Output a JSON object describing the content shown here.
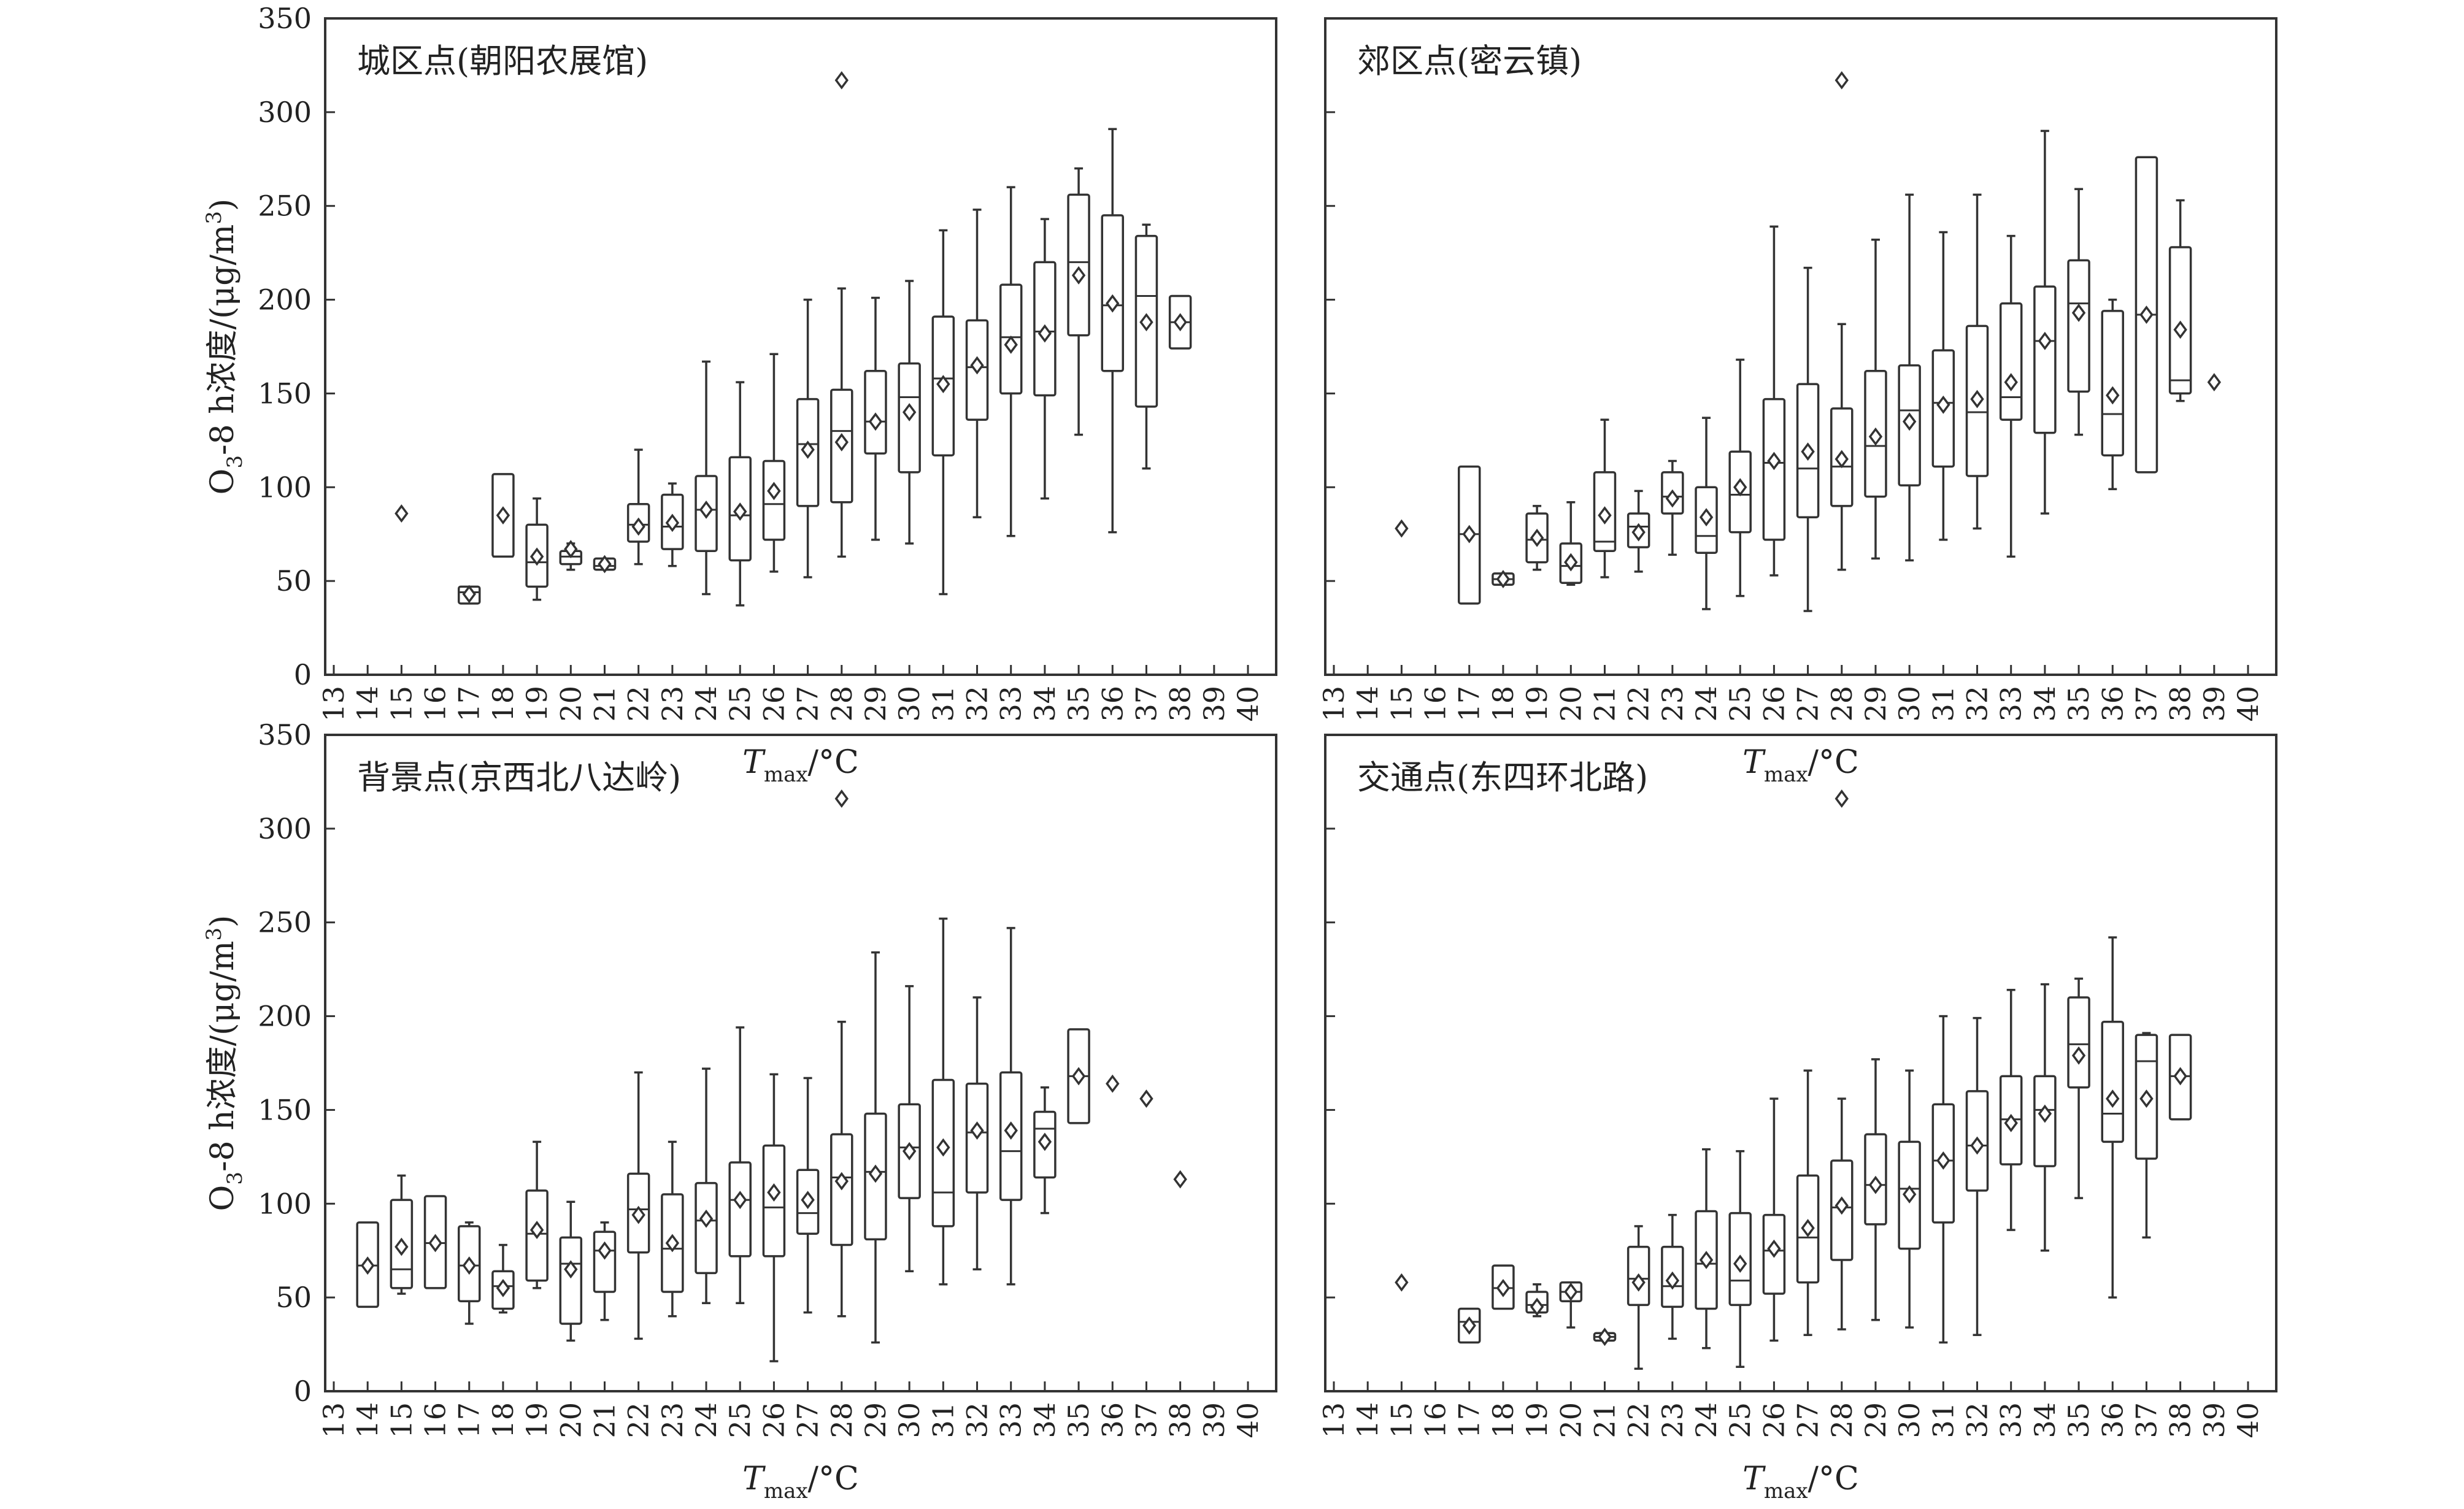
{
  "chart_data": [
    {
      "type": "box",
      "title": "城区点(朝阳农展馆)",
      "x_ticks": [
        13,
        14,
        15,
        16,
        17,
        18,
        19,
        20,
        21,
        22,
        23,
        24,
        25,
        26,
        27,
        28,
        29,
        30,
        31,
        32,
        33,
        34,
        35,
        36,
        37,
        38,
        39,
        40
      ],
      "y_ticks": [
        0,
        50,
        100,
        150,
        200,
        250,
        300,
        350
      ],
      "ylim": [
        0,
        350
      ],
      "xlabel": {
        "main": "T",
        "sub": "max",
        "unit": "/°C"
      },
      "ylabel": {
        "pre": "O",
        "sub": "3",
        "post": "-8 h浓度/(μg/m",
        "sup": "3",
        "end": ")"
      },
      "boxes": [
        {
          "x": 15,
          "mean": 86
        },
        {
          "x": 17,
          "q1": 38,
          "med": 44,
          "q3": 47,
          "mean": 43
        },
        {
          "x": 18,
          "q1": 63,
          "med": 63,
          "q3": 107,
          "mean": 85
        },
        {
          "x": 19,
          "lo": 40,
          "q1": 47,
          "med": 60,
          "q3": 80,
          "hi": 94,
          "mean": 63
        },
        {
          "x": 20,
          "lo": 56,
          "q1": 59,
          "med": 63,
          "q3": 66,
          "hi": 70,
          "mean": 67
        },
        {
          "x": 21,
          "q1": 56,
          "med": 58,
          "q3": 62,
          "mean": 59
        },
        {
          "x": 22,
          "lo": 59,
          "q1": 71,
          "med": 80,
          "q3": 91,
          "hi": 120,
          "mean": 79
        },
        {
          "x": 23,
          "lo": 58,
          "q1": 67,
          "med": 79,
          "q3": 96,
          "hi": 102,
          "mean": 81
        },
        {
          "x": 24,
          "lo": 43,
          "q1": 66,
          "med": 88,
          "q3": 106,
          "hi": 167,
          "mean": 88
        },
        {
          "x": 25,
          "lo": 37,
          "q1": 61,
          "med": 85,
          "q3": 116,
          "hi": 156,
          "mean": 87
        },
        {
          "x": 26,
          "lo": 55,
          "q1": 72,
          "med": 91,
          "q3": 114,
          "hi": 171,
          "mean": 98
        },
        {
          "x": 27,
          "lo": 52,
          "q1": 90,
          "med": 123,
          "q3": 147,
          "hi": 200,
          "mean": 120
        },
        {
          "x": 28,
          "lo": 63,
          "q1": 92,
          "med": 130,
          "q3": 152,
          "hi": 206,
          "mean": 124,
          "outliers": [
            317
          ]
        },
        {
          "x": 29,
          "lo": 72,
          "q1": 118,
          "med": 135,
          "q3": 162,
          "hi": 201,
          "mean": 135
        },
        {
          "x": 30,
          "lo": 70,
          "q1": 108,
          "med": 148,
          "q3": 166,
          "hi": 210,
          "mean": 140
        },
        {
          "x": 31,
          "lo": 43,
          "q1": 117,
          "med": 158,
          "q3": 191,
          "hi": 237,
          "mean": 155
        },
        {
          "x": 32,
          "lo": 84,
          "q1": 136,
          "med": 164,
          "q3": 189,
          "hi": 248,
          "mean": 165
        },
        {
          "x": 33,
          "lo": 74,
          "q1": 150,
          "med": 180,
          "q3": 208,
          "hi": 260,
          "mean": 176
        },
        {
          "x": 34,
          "lo": 94,
          "q1": 149,
          "med": 183,
          "q3": 220,
          "hi": 243,
          "mean": 182
        },
        {
          "x": 35,
          "lo": 128,
          "q1": 181,
          "med": 220,
          "q3": 256,
          "hi": 270,
          "mean": 213
        },
        {
          "x": 36,
          "lo": 76,
          "q1": 162,
          "med": 197,
          "q3": 245,
          "hi": 291,
          "mean": 198
        },
        {
          "x": 37,
          "lo": 110,
          "q1": 143,
          "med": 202,
          "q3": 234,
          "hi": 240,
          "mean": 188
        },
        {
          "x": 38,
          "q1": 174,
          "med": 188,
          "q3": 202,
          "mean": 188
        }
      ]
    },
    {
      "type": "box",
      "title": "郊区点(密云镇)",
      "x_ticks": [
        13,
        14,
        15,
        16,
        17,
        18,
        19,
        20,
        21,
        22,
        23,
        24,
        25,
        26,
        27,
        28,
        29,
        30,
        31,
        32,
        33,
        34,
        35,
        36,
        37,
        38,
        39,
        40
      ],
      "y_ticks": [
        0,
        50,
        100,
        150,
        200,
        250,
        300,
        350
      ],
      "ylim": [
        0,
        350
      ],
      "xlabel": {
        "main": "T",
        "sub": "max",
        "unit": "/°C"
      },
      "ylabel": {
        "pre": "",
        "sub": "",
        "post": "",
        "sup": "",
        "end": ""
      },
      "boxes": [
        {
          "x": 15,
          "mean": 78
        },
        {
          "x": 17,
          "q1": 38,
          "med": 75,
          "q3": 111,
          "mean": 75
        },
        {
          "x": 18,
          "q1": 48,
          "med": 51,
          "q3": 54,
          "mean": 51
        },
        {
          "x": 19,
          "lo": 56,
          "q1": 60,
          "med": 72,
          "q3": 86,
          "hi": 90,
          "mean": 73
        },
        {
          "x": 20,
          "lo": 48,
          "q1": 49,
          "med": 58,
          "q3": 70,
          "hi": 92,
          "mean": 60
        },
        {
          "x": 21,
          "lo": 52,
          "q1": 66,
          "med": 71,
          "q3": 108,
          "hi": 136,
          "mean": 85
        },
        {
          "x": 22,
          "lo": 55,
          "q1": 68,
          "med": 79,
          "q3": 86,
          "hi": 98,
          "mean": 76
        },
        {
          "x": 23,
          "lo": 64,
          "q1": 86,
          "med": 95,
          "q3": 108,
          "hi": 114,
          "mean": 94
        },
        {
          "x": 24,
          "lo": 35,
          "q1": 65,
          "med": 74,
          "q3": 100,
          "hi": 137,
          "mean": 84
        },
        {
          "x": 25,
          "lo": 42,
          "q1": 76,
          "med": 96,
          "q3": 119,
          "hi": 168,
          "mean": 100
        },
        {
          "x": 26,
          "lo": 53,
          "q1": 72,
          "med": 113,
          "q3": 147,
          "hi": 239,
          "mean": 114
        },
        {
          "x": 27,
          "lo": 34,
          "q1": 84,
          "med": 110,
          "q3": 155,
          "hi": 217,
          "mean": 119
        },
        {
          "x": 28,
          "lo": 56,
          "q1": 90,
          "med": 111,
          "q3": 142,
          "hi": 187,
          "mean": 115,
          "outliers": [
            317
          ]
        },
        {
          "x": 29,
          "lo": 62,
          "q1": 95,
          "med": 122,
          "q3": 162,
          "hi": 232,
          "mean": 127
        },
        {
          "x": 30,
          "lo": 61,
          "q1": 101,
          "med": 141,
          "q3": 165,
          "hi": 256,
          "mean": 135
        },
        {
          "x": 31,
          "lo": 72,
          "q1": 111,
          "med": 145,
          "q3": 173,
          "hi": 236,
          "mean": 144
        },
        {
          "x": 32,
          "lo": 78,
          "q1": 106,
          "med": 140,
          "q3": 186,
          "hi": 256,
          "mean": 147
        },
        {
          "x": 33,
          "lo": 63,
          "q1": 136,
          "med": 148,
          "q3": 198,
          "hi": 234,
          "mean": 156
        },
        {
          "x": 34,
          "lo": 86,
          "q1": 129,
          "med": 178,
          "q3": 207,
          "hi": 290,
          "mean": 178
        },
        {
          "x": 35,
          "lo": 128,
          "q1": 151,
          "med": 198,
          "q3": 221,
          "hi": 259,
          "mean": 193
        },
        {
          "x": 36,
          "lo": 99,
          "q1": 117,
          "med": 139,
          "q3": 194,
          "hi": 200,
          "mean": 149
        },
        {
          "x": 37,
          "q1": 108,
          "med": 192,
          "q3": 276,
          "mean": 192
        },
        {
          "x": 38,
          "lo": 146,
          "q1": 150,
          "med": 157,
          "q3": 228,
          "hi": 253,
          "mean": 184
        },
        {
          "x": 39,
          "mean": 156
        }
      ]
    },
    {
      "type": "box",
      "title": "背景点(京西北八达岭)",
      "x_ticks": [
        13,
        14,
        15,
        16,
        17,
        18,
        19,
        20,
        21,
        22,
        23,
        24,
        25,
        26,
        27,
        28,
        29,
        30,
        31,
        32,
        33,
        34,
        35,
        36,
        37,
        38,
        39,
        40
      ],
      "y_ticks": [
        0,
        50,
        100,
        150,
        200,
        250,
        300,
        350
      ],
      "ylim": [
        0,
        350
      ],
      "xlabel": {
        "main": "T",
        "sub": "max",
        "unit": "/°C"
      },
      "ylabel": {
        "pre": "O",
        "sub": "3",
        "post": "-8 h浓度/(μg/m",
        "sup": "3",
        "end": ")"
      },
      "boxes": [
        {
          "x": 14,
          "q1": 45,
          "med": 67,
          "q3": 90,
          "mean": 67
        },
        {
          "x": 15,
          "lo": 52,
          "q1": 55,
          "med": 65,
          "q3": 102,
          "hi": 115,
          "mean": 77
        },
        {
          "x": 16,
          "q1": 55,
          "med": 79,
          "q3": 104,
          "mean": 79
        },
        {
          "x": 17,
          "lo": 36,
          "q1": 48,
          "med": 67,
          "q3": 88,
          "hi": 90,
          "mean": 67
        },
        {
          "x": 18,
          "lo": 42,
          "q1": 44,
          "med": 56,
          "q3": 64,
          "hi": 78,
          "mean": 55
        },
        {
          "x": 19,
          "lo": 55,
          "q1": 59,
          "med": 84,
          "q3": 107,
          "hi": 133,
          "mean": 86
        },
        {
          "x": 20,
          "lo": 27,
          "q1": 36,
          "med": 68,
          "q3": 82,
          "hi": 101,
          "mean": 65
        },
        {
          "x": 21,
          "lo": 38,
          "q1": 53,
          "med": 75,
          "q3": 85,
          "hi": 90,
          "mean": 75
        },
        {
          "x": 22,
          "lo": 28,
          "q1": 74,
          "med": 97,
          "q3": 116,
          "hi": 170,
          "mean": 94
        },
        {
          "x": 23,
          "lo": 40,
          "q1": 53,
          "med": 76,
          "q3": 105,
          "hi": 133,
          "mean": 79
        },
        {
          "x": 24,
          "lo": 47,
          "q1": 63,
          "med": 91,
          "q3": 111,
          "hi": 172,
          "mean": 92
        },
        {
          "x": 25,
          "lo": 47,
          "q1": 72,
          "med": 102,
          "q3": 122,
          "hi": 194,
          "mean": 102
        },
        {
          "x": 26,
          "lo": 16,
          "q1": 72,
          "med": 98,
          "q3": 131,
          "hi": 169,
          "mean": 106
        },
        {
          "x": 27,
          "lo": 42,
          "q1": 84,
          "med": 95,
          "q3": 118,
          "hi": 167,
          "mean": 102
        },
        {
          "x": 28,
          "lo": 40,
          "q1": 78,
          "med": 114,
          "q3": 137,
          "hi": 197,
          "mean": 112,
          "outliers": [
            316
          ]
        },
        {
          "x": 29,
          "lo": 26,
          "q1": 81,
          "med": 117,
          "q3": 148,
          "hi": 234,
          "mean": 116
        },
        {
          "x": 30,
          "lo": 64,
          "q1": 103,
          "med": 130,
          "q3": 153,
          "hi": 216,
          "mean": 128
        },
        {
          "x": 31,
          "lo": 57,
          "q1": 88,
          "med": 106,
          "q3": 166,
          "hi": 252,
          "mean": 130
        },
        {
          "x": 32,
          "lo": 65,
          "q1": 106,
          "med": 138,
          "q3": 164,
          "hi": 210,
          "mean": 139
        },
        {
          "x": 33,
          "lo": 57,
          "q1": 102,
          "med": 128,
          "q3": 170,
          "hi": 247,
          "mean": 139
        },
        {
          "x": 34,
          "lo": 95,
          "q1": 114,
          "med": 140,
          "q3": 149,
          "hi": 162,
          "mean": 133
        },
        {
          "x": 35,
          "q1": 143,
          "med": 168,
          "q3": 193,
          "mean": 168
        },
        {
          "x": 36,
          "mean": 164
        },
        {
          "x": 37,
          "mean": 156
        },
        {
          "x": 38,
          "mean": 113
        }
      ]
    },
    {
      "type": "box",
      "title": "交通点(东四环北路)",
      "x_ticks": [
        13,
        14,
        15,
        16,
        17,
        18,
        19,
        20,
        21,
        22,
        23,
        24,
        25,
        26,
        27,
        28,
        29,
        30,
        31,
        32,
        33,
        34,
        35,
        36,
        37,
        38,
        39,
        40
      ],
      "y_ticks": [
        0,
        50,
        100,
        150,
        200,
        250,
        300,
        350
      ],
      "ylim": [
        0,
        350
      ],
      "xlabel": {
        "main": "T",
        "sub": "max",
        "unit": "/°C"
      },
      "ylabel": {
        "pre": "",
        "sub": "",
        "post": "",
        "sup": "",
        "end": ""
      },
      "boxes": [
        {
          "x": 15,
          "mean": 58
        },
        {
          "x": 17,
          "q1": 26,
          "med": 37,
          "q3": 44,
          "mean": 35
        },
        {
          "x": 18,
          "q1": 44,
          "med": 55,
          "q3": 67,
          "mean": 55
        },
        {
          "x": 19,
          "lo": 40,
          "q1": 42,
          "med": 46,
          "q3": 53,
          "hi": 57,
          "mean": 45
        },
        {
          "x": 20,
          "lo": 34,
          "q1": 48,
          "med": 53,
          "q3": 58,
          "hi": 58,
          "mean": 53
        },
        {
          "x": 21,
          "q1": 27,
          "med": 29,
          "q3": 31,
          "mean": 29
        },
        {
          "x": 22,
          "lo": 12,
          "q1": 46,
          "med": 60,
          "q3": 77,
          "hi": 88,
          "mean": 58
        },
        {
          "x": 23,
          "lo": 28,
          "q1": 45,
          "med": 56,
          "q3": 77,
          "hi": 94,
          "mean": 59
        },
        {
          "x": 24,
          "lo": 23,
          "q1": 44,
          "med": 68,
          "q3": 96,
          "hi": 129,
          "mean": 70
        },
        {
          "x": 25,
          "lo": 13,
          "q1": 46,
          "med": 59,
          "q3": 95,
          "hi": 128,
          "mean": 68
        },
        {
          "x": 26,
          "lo": 27,
          "q1": 52,
          "med": 75,
          "q3": 94,
          "hi": 156,
          "mean": 76
        },
        {
          "x": 27,
          "lo": 30,
          "q1": 58,
          "med": 82,
          "q3": 115,
          "hi": 171,
          "mean": 87
        },
        {
          "x": 28,
          "lo": 33,
          "q1": 70,
          "med": 98,
          "q3": 123,
          "hi": 156,
          "mean": 99,
          "outliers": [
            316
          ]
        },
        {
          "x": 29,
          "lo": 38,
          "q1": 89,
          "med": 110,
          "q3": 137,
          "hi": 177,
          "mean": 110
        },
        {
          "x": 30,
          "lo": 34,
          "q1": 76,
          "med": 108,
          "q3": 133,
          "hi": 171,
          "mean": 105
        },
        {
          "x": 31,
          "lo": 26,
          "q1": 90,
          "med": 123,
          "q3": 153,
          "hi": 200,
          "mean": 123
        },
        {
          "x": 32,
          "lo": 30,
          "q1": 107,
          "med": 131,
          "q3": 160,
          "hi": 199,
          "mean": 131
        },
        {
          "x": 33,
          "lo": 86,
          "q1": 121,
          "med": 145,
          "q3": 168,
          "hi": 214,
          "mean": 143
        },
        {
          "x": 34,
          "lo": 75,
          "q1": 120,
          "med": 150,
          "q3": 168,
          "hi": 217,
          "mean": 148
        },
        {
          "x": 35,
          "lo": 103,
          "q1": 162,
          "med": 185,
          "q3": 210,
          "hi": 220,
          "mean": 179
        },
        {
          "x": 36,
          "lo": 50,
          "q1": 133,
          "med": 148,
          "q3": 197,
          "hi": 242,
          "mean": 156
        },
        {
          "x": 37,
          "lo": 82,
          "q1": 124,
          "med": 176,
          "q3": 190,
          "hi": 191,
          "mean": 156
        },
        {
          "x": 38,
          "q1": 145,
          "med": 168,
          "q3": 190,
          "mean": 168
        }
      ]
    }
  ]
}
